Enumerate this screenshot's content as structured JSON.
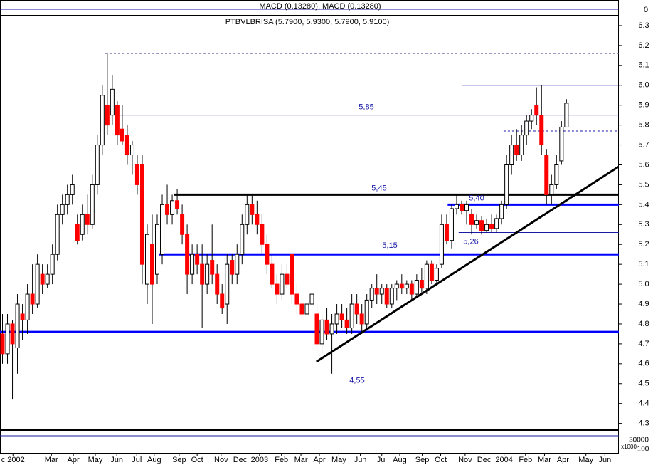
{
  "chart_data": {
    "type": "candlestick",
    "title": "PTBVLBRISA (5.7900, 5.9300, 5.7900, 5.9100)",
    "up_color": "#ffffff",
    "down_color": "#ff0000",
    "xlim": [
      -0.5,
      123.5
    ],
    "ylim": [
      4.27,
      6.35
    ],
    "yticks": [
      4.3,
      4.4,
      4.5,
      4.6,
      4.7,
      4.8,
      4.9,
      {
        "value": 5,
        "label": "5.0"
      },
      5.1,
      5.2,
      5.3,
      5.4,
      5.5,
      5.6,
      5.7,
      5.8,
      5.9,
      {
        "value": 6,
        "label": "6.0"
      },
      6.1,
      6.2,
      6.3
    ],
    "xticks": [
      {
        "value": 2.1,
        "label": "c 2002"
      },
      {
        "value": 9.8,
        "label": "Mar"
      },
      {
        "value": 14.2,
        "label": "Apr"
      },
      {
        "value": 18.6,
        "label": "May"
      },
      {
        "value": 22.9,
        "label": "Jun"
      },
      {
        "value": 26.9,
        "label": "Jul"
      },
      {
        "value": 30.4,
        "label": "Aug"
      },
      {
        "value": 35.4,
        "label": "Sep"
      },
      {
        "value": 39,
        "label": "Oct"
      },
      {
        "value": 43.8,
        "label": "Nov"
      },
      {
        "value": 47.6,
        "label": "Dec"
      },
      {
        "value": 51.5,
        "label": "2003"
      },
      {
        "value": 55.9,
        "label": "Feb"
      },
      {
        "value": 59.8,
        "label": "Mar"
      },
      {
        "value": 63.5,
        "label": "Apr"
      },
      {
        "value": 67.4,
        "label": "May"
      },
      {
        "value": 71.7,
        "label": "Jun"
      },
      {
        "value": 76,
        "label": "Jul"
      },
      {
        "value": 79.6,
        "label": "Aug"
      },
      {
        "value": 84.1,
        "label": "Sep"
      },
      {
        "value": 87.8,
        "label": "Oct"
      },
      {
        "value": 92.7,
        "label": "Nov"
      },
      {
        "value": 96.5,
        "label": "Dec"
      },
      {
        "value": 100.5,
        "label": "2004"
      },
      {
        "value": 104.8,
        "label": "Feb"
      },
      {
        "value": 108.6,
        "label": "Mar"
      },
      {
        "value": 112.3,
        "label": "Apr"
      },
      {
        "value": 116.9,
        "label": "May"
      },
      {
        "value": 120.7,
        "label": "Jun"
      }
    ],
    "x": [
      0,
      1,
      2,
      3,
      4,
      5,
      6,
      7,
      8,
      9,
      10,
      11,
      12,
      13,
      14,
      15,
      16,
      17,
      18,
      19,
      20,
      21,
      22,
      23,
      24,
      25,
      26,
      27,
      28,
      29,
      30,
      31,
      32,
      33,
      34,
      35,
      36,
      37,
      38,
      39,
      40,
      41,
      42,
      43,
      44,
      45,
      46,
      47,
      48,
      49,
      50,
      51,
      52,
      53,
      54,
      55,
      56,
      57,
      58,
      59,
      60,
      61,
      62,
      63,
      64,
      65,
      66,
      67,
      68,
      69,
      70,
      71,
      72,
      73,
      74,
      75,
      76,
      77,
      78,
      79,
      80,
      81,
      82,
      83,
      84,
      85,
      86,
      87,
      88,
      89,
      90,
      91,
      92,
      93,
      94,
      95,
      96,
      97,
      98,
      99,
      100,
      101,
      102,
      103,
      104,
      105,
      106,
      107,
      108,
      109,
      110,
      111,
      112,
      113
    ],
    "open": [
      4.75,
      4.65,
      4.8,
      4.68,
      4.85,
      4.82,
      4.95,
      4.9,
      5.05,
      5.0,
      5.05,
      5.15,
      5.35,
      5.4,
      5.45,
      5.3,
      5.25,
      5.35,
      5.3,
      5.5,
      5.7,
      5.9,
      5.85,
      5.9,
      5.78,
      5.75,
      5.65,
      5.6,
      5.6,
      5.0,
      5.2,
      5.05,
      5.15,
      5.4,
      5.35,
      5.42,
      5.35,
      5.25,
      5.05,
      5.15,
      5.1,
      5.0,
      5.12,
      5.05,
      4.95,
      4.9,
      5.12,
      5.05,
      5.15,
      5.3,
      5.4,
      5.35,
      5.3,
      5.2,
      5.1,
      5.0,
      4.95,
      5.05,
      5.15,
      4.95,
      4.9,
      4.85,
      4.9,
      4.85,
      4.7,
      4.82,
      4.75,
      4.8,
      4.85,
      4.82,
      4.78,
      4.9,
      4.85,
      4.8,
      4.92,
      4.98,
      4.95,
      4.98,
      4.9,
      4.98,
      5.0,
      4.98,
      5.0,
      4.95,
      5.02,
      4.98,
      5.1,
      5.02,
      5.1,
      5.3,
      5.22,
      5.38,
      5.4,
      5.37,
      5.35,
      5.3,
      5.32,
      5.27,
      5.3,
      5.28,
      5.33,
      5.4,
      5.6,
      5.7,
      5.65,
      5.75,
      5.82,
      5.9,
      5.85,
      5.65,
      5.45,
      5.5,
      5.62,
      5.79
    ],
    "high": [
      4.85,
      4.85,
      4.82,
      4.95,
      4.9,
      5.0,
      5.1,
      5.15,
      5.1,
      5.1,
      5.2,
      5.4,
      5.45,
      5.5,
      5.55,
      5.35,
      5.4,
      5.45,
      5.55,
      5.75,
      6.0,
      6.16,
      6.05,
      5.92,
      5.9,
      5.8,
      5.72,
      5.65,
      5.65,
      5.3,
      5.35,
      5.35,
      5.45,
      5.5,
      5.45,
      5.48,
      5.4,
      5.3,
      5.2,
      5.2,
      5.2,
      5.15,
      5.3,
      5.1,
      5.0,
      5.15,
      5.15,
      5.2,
      5.35,
      5.45,
      5.45,
      5.42,
      5.35,
      5.25,
      5.15,
      5.05,
      5.1,
      5.1,
      5.15,
      5.0,
      4.95,
      4.95,
      5.0,
      4.9,
      4.85,
      4.88,
      4.85,
      4.9,
      4.9,
      4.88,
      4.95,
      4.95,
      4.9,
      4.95,
      5.0,
      5.05,
      5.0,
      5.0,
      5.0,
      5.02,
      5.05,
      5.02,
      5.02,
      5.05,
      5.08,
      5.12,
      5.12,
      5.1,
      5.35,
      5.35,
      5.4,
      5.45,
      5.42,
      5.42,
      5.38,
      5.35,
      5.34,
      5.33,
      5.35,
      5.35,
      5.42,
      5.65,
      5.75,
      5.78,
      5.8,
      5.85,
      5.88,
      5.99,
      6.0,
      5.68,
      5.55,
      5.65,
      5.82,
      5.93
    ],
    "low": [
      4.6,
      4.6,
      4.42,
      4.55,
      4.72,
      4.75,
      4.85,
      4.88,
      4.95,
      4.98,
      5.0,
      5.12,
      5.3,
      5.35,
      5.4,
      5.2,
      5.22,
      5.25,
      5.28,
      5.45,
      5.65,
      5.75,
      5.8,
      5.7,
      5.7,
      5.6,
      5.55,
      5.45,
      5.0,
      4.9,
      4.8,
      5.0,
      5.1,
      5.3,
      5.3,
      5.35,
      5.2,
      4.95,
      5.0,
      5.05,
      4.78,
      4.95,
      5.0,
      4.9,
      4.85,
      4.8,
      5.0,
      5.0,
      5.1,
      5.25,
      5.3,
      5.25,
      5.15,
      5.05,
      4.98,
      4.9,
      4.92,
      4.98,
      4.9,
      4.85,
      4.82,
      4.8,
      4.85,
      4.65,
      4.65,
      4.72,
      4.55,
      4.75,
      4.78,
      4.75,
      4.75,
      4.8,
      4.75,
      4.78,
      4.88,
      4.9,
      4.9,
      4.88,
      4.88,
      4.92,
      4.95,
      4.95,
      4.92,
      4.93,
      4.95,
      4.95,
      5.0,
      5.0,
      5.08,
      5.2,
      5.18,
      5.35,
      5.35,
      5.3,
      5.25,
      5.28,
      5.25,
      5.26,
      5.26,
      5.26,
      5.3,
      5.38,
      5.55,
      5.62,
      5.62,
      5.7,
      5.78,
      5.8,
      5.65,
      5.4,
      5.4,
      5.48,
      5.6,
      5.79
    ],
    "close": [
      4.65,
      4.8,
      4.7,
      4.9,
      4.82,
      4.95,
      4.9,
      5.1,
      5.0,
      5.05,
      5.15,
      5.35,
      5.4,
      5.45,
      5.5,
      5.22,
      5.35,
      5.3,
      5.5,
      5.7,
      5.95,
      5.8,
      5.98,
      5.75,
      5.72,
      5.65,
      5.7,
      5.5,
      5.1,
      5.25,
      5.0,
      5.3,
      5.4,
      5.35,
      5.42,
      5.38,
      5.25,
      5.05,
      5.15,
      5.1,
      5.0,
      5.1,
      5.05,
      4.95,
      4.88,
      5.1,
      5.05,
      5.15,
      5.3,
      5.4,
      5.35,
      5.3,
      5.2,
      5.1,
      5.0,
      4.95,
      5.05,
      5.0,
      4.95,
      4.9,
      4.85,
      4.9,
      4.95,
      4.7,
      4.82,
      4.75,
      4.8,
      4.85,
      4.82,
      4.78,
      4.9,
      4.85,
      4.8,
      4.92,
      4.98,
      4.95,
      4.98,
      4.9,
      4.98,
      5.0,
      4.98,
      5.0,
      4.95,
      5.02,
      4.98,
      5.1,
      5.02,
      5.08,
      5.3,
      5.22,
      5.38,
      5.4,
      5.37,
      5.4,
      5.3,
      5.32,
      5.27,
      5.3,
      5.28,
      5.33,
      5.4,
      5.6,
      5.7,
      5.65,
      5.75,
      5.82,
      5.85,
      5.85,
      5.7,
      5.45,
      5.5,
      5.6,
      5.79,
      5.91
    ],
    "levels": [
      {
        "value": 6.16,
        "from": 20.6,
        "style": "dashed",
        "color": "#5a5a9a"
      },
      {
        "value": 6.0,
        "from": 92.1,
        "style": "thin",
        "color": "#1a1aa6"
      },
      {
        "value": 5.85,
        "from": 23.4,
        "style": "thin",
        "color": "#1a1aa6",
        "label": "5,85"
      },
      {
        "value": 5.77,
        "from": 100.4,
        "style": "dashed",
        "color": "#1a1aa6"
      },
      {
        "value": 5.65,
        "from": 100,
        "style": "dashed",
        "color": "#1a1aa6"
      },
      {
        "value": 5.45,
        "from": 34.4,
        "style": "thick",
        "color": "#000000",
        "label": "5,45"
      },
      {
        "value": 5.4,
        "from": 89.2,
        "style": "thick",
        "color": "#0000ff",
        "label": "5,40"
      },
      {
        "value": 5.26,
        "from": 91.4,
        "style": "thin",
        "color": "#1a1aa6",
        "label": "5,26"
      },
      {
        "value": 5.15,
        "from": 30.8,
        "style": "thick",
        "color": "#0000ff",
        "label": "5,15"
      },
      {
        "value": 4.76,
        "from": -0.5,
        "style": "thick",
        "color": "#0000ff"
      }
    ],
    "trendline": {
      "x": [
        62.9,
        123.4
      ],
      "y": [
        4.61,
        5.59
      ],
      "color": "#000000"
    },
    "annotations": [
      {
        "text": "4,55",
        "value": 4.55
      }
    ],
    "macd_panel": {
      "label": "MACD (0.13280), MACD (0.13280)",
      "axis_label": "0"
    },
    "lower_panel": {
      "labels": [
        "30000",
        "100",
        "x1000"
      ]
    }
  }
}
